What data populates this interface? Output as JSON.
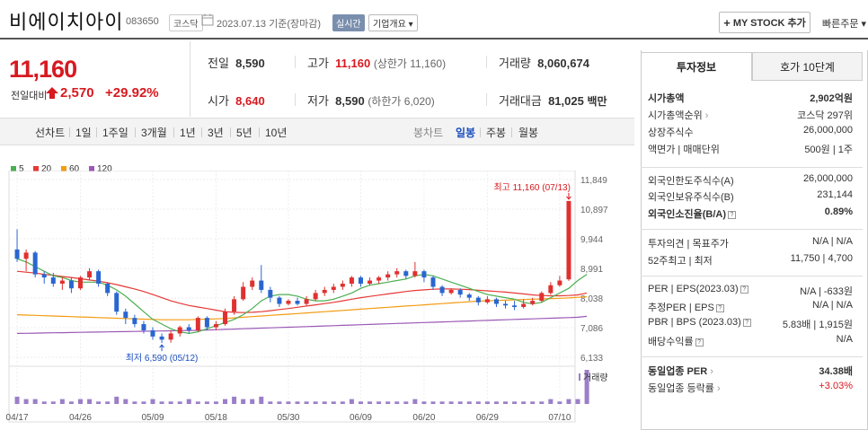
{
  "header": {
    "stock_name": "비에이치아이",
    "stock_code": "083650",
    "market": "코스닥",
    "date": "2023.07.13",
    "date_suffix": "기준(장마감)",
    "live_label": "실시간",
    "company_label": "기업개요",
    "company_arrow": "▾",
    "mystock_label": "MY STOCK 추가",
    "quick_order_label": "빠른주문",
    "quick_order_arrow": "▾"
  },
  "price": {
    "current": "11,160",
    "change_label": "전일대비",
    "change": "2,570",
    "change_pct": "+29.92%"
  },
  "quote": {
    "prev_label": "전일",
    "prev": "8,590",
    "high_label": "고가",
    "high": "11,160",
    "upper_limit": "(상한가 11,160)",
    "volume_label": "거래량",
    "volume": "8,060,674",
    "open_label": "시가",
    "open": "8,640",
    "low_label": "저가",
    "low": "8,590",
    "lower_limit": "(하한가 6,020)",
    "amount_label": "거래대금",
    "amount": "81,025",
    "amount_unit": "백만"
  },
  "periods": [
    "선차트",
    "1일",
    "1주일",
    "3개월",
    "1년",
    "3년",
    "5년",
    "10년"
  ],
  "chart_types": [
    "봉차트",
    "일봉",
    "주봉",
    "월봉"
  ],
  "legend": [
    {
      "label": "5",
      "color": "#4caf50"
    },
    {
      "label": "20",
      "color": "#e53935"
    },
    {
      "label": "60",
      "color": "#f39c12"
    },
    {
      "label": "120",
      "color": "#9b59b6"
    }
  ],
  "chart_data": {
    "type": "candlestick",
    "y_ticks": [
      "11,849",
      "10,897",
      "9,944",
      "8,991",
      "8,038",
      "7,086",
      "6,133"
    ],
    "ylim": [
      6133,
      11849
    ],
    "x_labels": [
      "04/17",
      "04/26",
      "05/09",
      "05/18",
      "05/30",
      "06/09",
      "06/20",
      "06/29",
      "07/10"
    ],
    "x_label_days": [
      0,
      7,
      15,
      22,
      30,
      38,
      45,
      52,
      60
    ],
    "max_annotation": "최고 11,160 (07/13)",
    "min_annotation": "최저 6,590 (05/12)",
    "volume_label": "거래량",
    "candles": [
      {
        "o": 9600,
        "c": 9300,
        "h": 10250,
        "l": 9200
      },
      {
        "o": 9300,
        "c": 9500,
        "h": 9600,
        "l": 8900
      },
      {
        "o": 9500,
        "c": 8800,
        "h": 9550,
        "l": 8700
      },
      {
        "o": 8800,
        "c": 8700,
        "h": 8900,
        "l": 8500
      },
      {
        "o": 8700,
        "c": 8500,
        "h": 8850,
        "l": 8400
      },
      {
        "o": 8500,
        "c": 8600,
        "h": 8700,
        "l": 8300
      },
      {
        "o": 8600,
        "c": 8350,
        "h": 8700,
        "l": 8200
      },
      {
        "o": 8350,
        "c": 8700,
        "h": 8750,
        "l": 8300
      },
      {
        "o": 8700,
        "c": 8900,
        "h": 9000,
        "l": 8600
      },
      {
        "o": 8900,
        "c": 8500,
        "h": 8950,
        "l": 8400
      },
      {
        "o": 8500,
        "c": 8200,
        "h": 8550,
        "l": 8100
      },
      {
        "o": 8200,
        "c": 7600,
        "h": 8250,
        "l": 7500
      },
      {
        "o": 7600,
        "c": 7400,
        "h": 7700,
        "l": 7200
      },
      {
        "o": 7400,
        "c": 7200,
        "h": 7500,
        "l": 7100
      },
      {
        "o": 7200,
        "c": 7000,
        "h": 7300,
        "l": 6900
      },
      {
        "o": 7000,
        "c": 6800,
        "h": 7100,
        "l": 6700
      },
      {
        "o": 6800,
        "c": 6700,
        "h": 6900,
        "l": 6590
      },
      {
        "o": 6700,
        "c": 6900,
        "h": 7000,
        "l": 6600
      },
      {
        "o": 6900,
        "c": 7100,
        "h": 7150,
        "l": 6800
      },
      {
        "o": 7100,
        "c": 7000,
        "h": 7200,
        "l": 6900
      },
      {
        "o": 7000,
        "c": 7400,
        "h": 7450,
        "l": 6950
      },
      {
        "o": 7400,
        "c": 7100,
        "h": 7450,
        "l": 7000
      },
      {
        "o": 7100,
        "c": 7200,
        "h": 7300,
        "l": 7000
      },
      {
        "o": 7200,
        "c": 7600,
        "h": 7700,
        "l": 7150
      },
      {
        "o": 7600,
        "c": 8000,
        "h": 8100,
        "l": 7500
      },
      {
        "o": 8000,
        "c": 8400,
        "h": 8550,
        "l": 7950
      },
      {
        "o": 8400,
        "c": 8600,
        "h": 8700,
        "l": 8300
      },
      {
        "o": 8600,
        "c": 8300,
        "h": 9100,
        "l": 8200
      },
      {
        "o": 8300,
        "c": 8050,
        "h": 8400,
        "l": 7900
      },
      {
        "o": 8050,
        "c": 7850,
        "h": 8100,
        "l": 7750
      },
      {
        "o": 7850,
        "c": 7950,
        "h": 8000,
        "l": 7800
      },
      {
        "o": 7950,
        "c": 7850,
        "h": 8050,
        "l": 7800
      },
      {
        "o": 7850,
        "c": 8000,
        "h": 8100,
        "l": 7800
      },
      {
        "o": 8000,
        "c": 8200,
        "h": 8300,
        "l": 7950
      },
      {
        "o": 8200,
        "c": 8300,
        "h": 8400,
        "l": 8100
      },
      {
        "o": 8300,
        "c": 8400,
        "h": 8500,
        "l": 8200
      },
      {
        "o": 8400,
        "c": 8500,
        "h": 8600,
        "l": 8300
      },
      {
        "o": 8500,
        "c": 8700,
        "h": 8750,
        "l": 8400
      },
      {
        "o": 8700,
        "c": 8500,
        "h": 8750,
        "l": 8400
      },
      {
        "o": 8500,
        "c": 8600,
        "h": 8700,
        "l": 8450
      },
      {
        "o": 8600,
        "c": 8700,
        "h": 8750,
        "l": 8500
      },
      {
        "o": 8700,
        "c": 8800,
        "h": 8900,
        "l": 8600
      },
      {
        "o": 8800,
        "c": 8900,
        "h": 9000,
        "l": 8700
      },
      {
        "o": 8900,
        "c": 8750,
        "h": 8950,
        "l": 8650
      },
      {
        "o": 8750,
        "c": 8900,
        "h": 9200,
        "l": 8700
      },
      {
        "o": 8900,
        "c": 8700,
        "h": 8950,
        "l": 8550
      },
      {
        "o": 8700,
        "c": 8400,
        "h": 8750,
        "l": 8300
      },
      {
        "o": 8400,
        "c": 8200,
        "h": 8450,
        "l": 8100
      },
      {
        "o": 8200,
        "c": 8300,
        "h": 8350,
        "l": 8150
      },
      {
        "o": 8300,
        "c": 8150,
        "h": 8350,
        "l": 8050
      },
      {
        "o": 8150,
        "c": 8050,
        "h": 8200,
        "l": 7950
      },
      {
        "o": 8050,
        "c": 7900,
        "h": 8100,
        "l": 7800
      },
      {
        "o": 7900,
        "c": 8000,
        "h": 8100,
        "l": 7850
      },
      {
        "o": 8000,
        "c": 7850,
        "h": 8050,
        "l": 7750
      },
      {
        "o": 7850,
        "c": 7800,
        "h": 7950,
        "l": 7700
      },
      {
        "o": 7800,
        "c": 7750,
        "h": 7950,
        "l": 7650
      },
      {
        "o": 7750,
        "c": 7850,
        "h": 8000,
        "l": 7700
      },
      {
        "o": 7850,
        "c": 7950,
        "h": 8050,
        "l": 7800
      },
      {
        "o": 7950,
        "c": 8200,
        "h": 8250,
        "l": 7900
      },
      {
        "o": 8200,
        "c": 8450,
        "h": 8550,
        "l": 8150
      },
      {
        "o": 8450,
        "c": 8600,
        "h": 8750,
        "l": 8400
      },
      {
        "o": 8640,
        "c": 11160,
        "h": 11160,
        "l": 8590
      }
    ],
    "ma5": [
      9300,
      9200,
      9050,
      8900,
      8750,
      8700,
      8600,
      8550,
      8550,
      8550,
      8450,
      8300,
      8100,
      7850,
      7600,
      7350,
      7200,
      7050,
      6950,
      6900,
      6950,
      7050,
      7150,
      7250,
      7350,
      7500,
      7700,
      7950,
      8100,
      8150,
      8150,
      8100,
      8000,
      7950,
      7950,
      8000,
      8100,
      8200,
      8350,
      8450,
      8500,
      8550,
      8600,
      8650,
      8750,
      8800,
      8750,
      8650,
      8550,
      8450,
      8350,
      8250,
      8150,
      8100,
      8050,
      8000,
      7900,
      7850,
      7900,
      8050,
      8200,
      8350,
      8600,
      8800
    ],
    "ma20": [
      8900,
      8870,
      8840,
      8800,
      8770,
      8730,
      8700,
      8660,
      8620,
      8580,
      8530,
      8470,
      8400,
      8330,
      8250,
      8150,
      8050,
      7950,
      7870,
      7800,
      7750,
      7700,
      7650,
      7600,
      7580,
      7570,
      7580,
      7600,
      7630,
      7670,
      7700,
      7740,
      7780,
      7820,
      7860,
      7900,
      7950,
      8000,
      8050,
      8090,
      8130,
      8170,
      8210,
      8250,
      8280,
      8300,
      8320,
      8330,
      8330,
      8320,
      8310,
      8290,
      8270,
      8250,
      8230,
      8200,
      8170,
      8140,
      8120,
      8110,
      8110,
      8120,
      8140,
      8200
    ],
    "ma60": [
      7500,
      7490,
      7480,
      7470,
      7460,
      7450,
      7440,
      7430,
      7420,
      7410,
      7400,
      7390,
      7380,
      7370,
      7360,
      7350,
      7340,
      7340,
      7340,
      7340,
      7350,
      7360,
      7370,
      7380,
      7400,
      7420,
      7440,
      7460,
      7480,
      7500,
      7520,
      7540,
      7560,
      7580,
      7600,
      7620,
      7640,
      7660,
      7680,
      7700,
      7720,
      7740,
      7760,
      7780,
      7800,
      7820,
      7840,
      7860,
      7880,
      7900,
      7920,
      7940,
      7950,
      7960,
      7970,
      7980,
      7990,
      8000,
      8010,
      8020,
      8030,
      8040,
      8060,
      8080
    ],
    "ma120": [
      6900,
      6905,
      6910,
      6915,
      6920,
      6925,
      6930,
      6935,
      6940,
      6945,
      6950,
      6955,
      6960,
      6965,
      6970,
      6975,
      6980,
      6985,
      6990,
      6995,
      7000,
      7010,
      7020,
      7030,
      7040,
      7050,
      7060,
      7070,
      7080,
      7090,
      7100,
      7110,
      7120,
      7130,
      7140,
      7150,
      7160,
      7170,
      7180,
      7190,
      7200,
      7210,
      7220,
      7230,
      7240,
      7250,
      7260,
      7270,
      7280,
      7290,
      7300,
      7310,
      7320,
      7330,
      7340,
      7350,
      7360,
      7370,
      7380,
      7390,
      7400,
      7410,
      7420,
      7450
    ],
    "volumes": [
      3,
      2,
      2,
      1,
      1,
      2,
      1,
      2,
      2,
      1,
      1,
      3,
      2,
      1,
      1,
      2,
      1,
      1,
      1,
      2,
      1,
      1,
      1,
      2,
      3,
      2,
      2,
      3,
      1,
      1,
      1,
      1,
      1,
      1,
      1,
      1,
      1,
      2,
      1,
      1,
      1,
      1,
      1,
      1,
      2,
      1,
      1,
      1,
      1,
      1,
      1,
      1,
      1,
      1,
      1,
      1,
      1,
      1,
      1,
      2,
      1,
      2,
      2,
      14
    ]
  },
  "side": {
    "tab1": "투자정보",
    "tab2": "호가 10단계",
    "rows": [
      {
        "l": "시가총액",
        "v": "2,902억원",
        "bold": true
      },
      {
        "l": "시가총액순위",
        "v": "코스닥 297위",
        "arrow": true
      },
      {
        "l": "상장주식수",
        "v": "26,000,000"
      },
      {
        "l": "액면가 | 매매단위",
        "v": "500원 | 1주"
      },
      {
        "l": "외국인한도주식수(A)",
        "v": "26,000,000"
      },
      {
        "l": "외국인보유주식수(B)",
        "v": "231,144"
      },
      {
        "l": "외국인소진율(B/A)",
        "v": "0.89%",
        "bold": true,
        "help": true
      },
      {
        "l": "투자의견 | 목표주가",
        "v": "N/A | N/A"
      },
      {
        "l": "52주최고 | 최저",
        "v": "11,750 | 4,700"
      },
      {
        "l": "PER | EPS(2023.03)",
        "v": "N/A | -633원",
        "help": true
      },
      {
        "l": "추정PER | EPS",
        "v": "N/A | N/A",
        "help": true
      },
      {
        "l": "PBR | BPS (2023.03)",
        "v": "5.83배 | 1,915원",
        "help": true
      },
      {
        "l": "배당수익률",
        "v": "N/A",
        "help": true
      },
      {
        "l": "동일업종 PER",
        "v": "34.38배",
        "bold": true,
        "arrow": true
      },
      {
        "l": "동일업종 등락률",
        "v": "+3.03%",
        "arrow": true,
        "red": true
      }
    ]
  }
}
